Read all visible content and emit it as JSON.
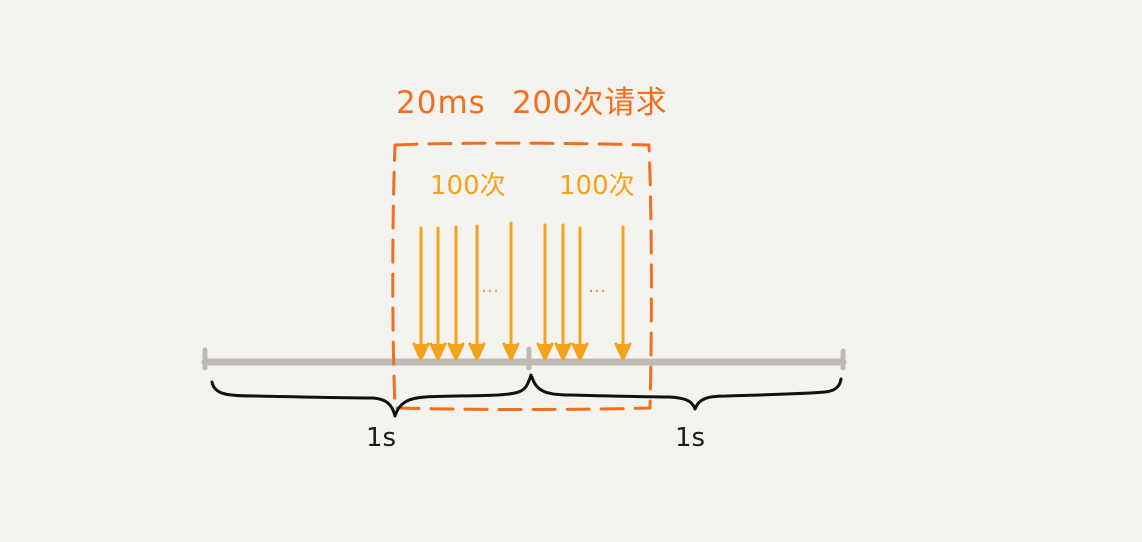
{
  "labels": {
    "window_time": "20ms",
    "window_requests": "200次请求",
    "left_group_count": "100次",
    "right_group_count": "100次",
    "left_ellipsis": "…",
    "right_ellipsis": "…",
    "left_second": "1s",
    "right_second": "1s"
  },
  "colors": {
    "background": "#f5f3ef",
    "timeline": "#bebab3",
    "dashed_box": "#f46f1d",
    "arrows": "#f3a21b",
    "braces": "#111111"
  },
  "icons": {
    "arrow": "down-arrow-icon",
    "timeline_tick": "timeline-tick-icon"
  }
}
